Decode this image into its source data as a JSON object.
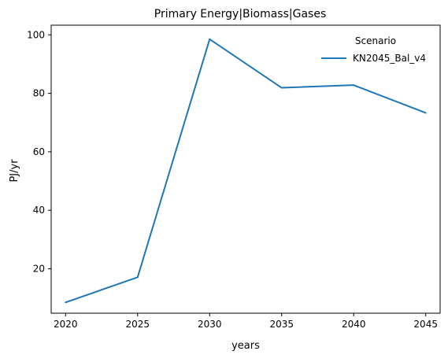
{
  "chart_data": {
    "type": "line",
    "title": "Primary Energy|Biomass|Gases",
    "xlabel": "years",
    "ylabel": "PJ/yr",
    "x": [
      2020,
      2025,
      2030,
      2035,
      2040,
      2045
    ],
    "xticks": [
      2020,
      2025,
      2030,
      2035,
      2040,
      2045
    ],
    "yticks": [
      20,
      40,
      60,
      80,
      100
    ],
    "xlim": [
      2019,
      2046
    ],
    "ylim": [
      4.8,
      103.3
    ],
    "grid": false,
    "legend": {
      "title": "Scenario",
      "placement": "top-right"
    },
    "series": [
      {
        "name": "KN2045_Bal_v4",
        "color": "#1f77b4",
        "values": [
          8.5,
          17.1,
          98.5,
          81.9,
          82.8,
          73.3
        ]
      }
    ]
  }
}
